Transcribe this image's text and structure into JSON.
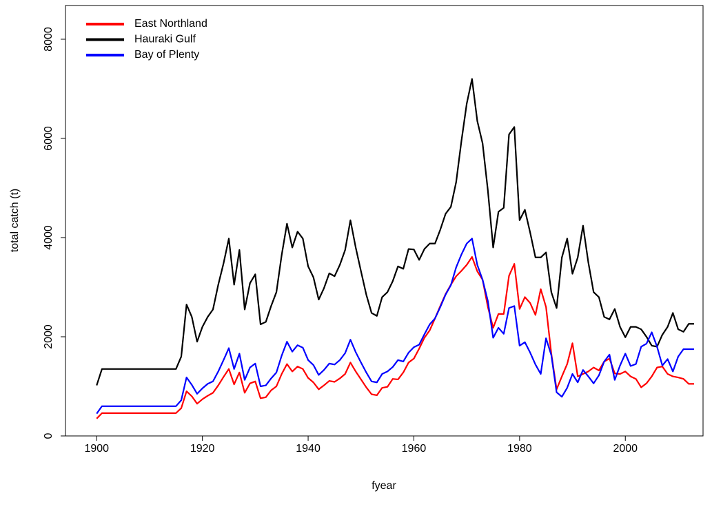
{
  "chart_data": {
    "type": "line",
    "x_label": "fyear",
    "y_label": "total catch (t)",
    "x": [
      1900,
      1901,
      1902,
      1903,
      1904,
      1905,
      1906,
      1907,
      1908,
      1909,
      1910,
      1911,
      1912,
      1913,
      1914,
      1915,
      1916,
      1917,
      1918,
      1919,
      1920,
      1921,
      1922,
      1923,
      1924,
      1925,
      1926,
      1927,
      1928,
      1929,
      1930,
      1931,
      1932,
      1933,
      1934,
      1935,
      1936,
      1937,
      1938,
      1939,
      1940,
      1941,
      1942,
      1943,
      1944,
      1945,
      1946,
      1947,
      1948,
      1949,
      1950,
      1951,
      1952,
      1953,
      1954,
      1955,
      1956,
      1957,
      1958,
      1959,
      1960,
      1961,
      1962,
      1963,
      1964,
      1965,
      1966,
      1967,
      1968,
      1969,
      1970,
      1971,
      1972,
      1973,
      1974,
      1975,
      1976,
      1977,
      1978,
      1979,
      1980,
      1981,
      1982,
      1983,
      1984,
      1985,
      1986,
      1987,
      1988,
      1989,
      1990,
      1991,
      1992,
      1993,
      1994,
      1995,
      1996,
      1997,
      1998,
      1999,
      2000,
      2001,
      2002,
      2003,
      2004,
      2005,
      2006,
      2007,
      2008,
      2009,
      2010,
      2011,
      2012,
      2013
    ],
    "series": [
      {
        "name": "East Northland",
        "color": "#ff0000",
        "values": [
          350,
          460,
          460,
          460,
          460,
          460,
          460,
          460,
          460,
          460,
          460,
          460,
          460,
          460,
          460,
          460,
          560,
          900,
          800,
          650,
          740,
          810,
          870,
          1020,
          1190,
          1350,
          1040,
          1280,
          870,
          1060,
          1100,
          760,
          780,
          920,
          1000,
          1250,
          1450,
          1300,
          1400,
          1350,
          1170,
          1080,
          940,
          1020,
          1110,
          1090,
          1160,
          1250,
          1480,
          1300,
          1140,
          980,
          840,
          820,
          970,
          990,
          1150,
          1140,
          1280,
          1480,
          1560,
          1760,
          1980,
          2130,
          2370,
          2620,
          2860,
          3050,
          3220,
          3330,
          3450,
          3610,
          3320,
          3150,
          2600,
          2180,
          2460,
          2460,
          3230,
          3470,
          2560,
          2800,
          2680,
          2440,
          2960,
          2600,
          1660,
          940,
          1200,
          1450,
          1870,
          1200,
          1250,
          1300,
          1380,
          1320,
          1500,
          1560,
          1260,
          1250,
          1300,
          1200,
          1150,
          980,
          1060,
          1200,
          1380,
          1400,
          1250,
          1200,
          1180,
          1150,
          1050,
          1050
        ]
      },
      {
        "name": "Hauraki Gulf",
        "color": "#000000",
        "values": [
          1020,
          1350,
          1350,
          1350,
          1350,
          1350,
          1350,
          1350,
          1350,
          1350,
          1350,
          1350,
          1350,
          1350,
          1350,
          1350,
          1600,
          2650,
          2400,
          1900,
          2200,
          2400,
          2550,
          3050,
          3480,
          3980,
          3050,
          3750,
          2550,
          3080,
          3260,
          2250,
          2300,
          2620,
          2900,
          3650,
          4280,
          3800,
          4120,
          3980,
          3420,
          3200,
          2750,
          2980,
          3280,
          3220,
          3450,
          3750,
          4350,
          3800,
          3320,
          2850,
          2480,
          2420,
          2800,
          2900,
          3120,
          3420,
          3370,
          3770,
          3760,
          3550,
          3770,
          3880,
          3880,
          4160,
          4480,
          4620,
          5120,
          5950,
          6700,
          7200,
          6350,
          5900,
          4950,
          3800,
          4520,
          4600,
          6080,
          6230,
          4350,
          4560,
          4100,
          3600,
          3600,
          3700,
          2900,
          2580,
          3600,
          3980,
          3270,
          3600,
          4240,
          3500,
          2900,
          2800,
          2400,
          2350,
          2560,
          2200,
          1990,
          2200,
          2200,
          2150,
          2000,
          1820,
          1800,
          2040,
          2200,
          2480,
          2150,
          2100,
          2260,
          2260
        ]
      },
      {
        "name": "Bay of Plenty",
        "color": "#0000ff",
        "values": [
          450,
          600,
          600,
          600,
          600,
          600,
          600,
          600,
          600,
          600,
          600,
          600,
          600,
          600,
          600,
          600,
          720,
          1180,
          1030,
          850,
          960,
          1050,
          1100,
          1300,
          1530,
          1770,
          1350,
          1660,
          1130,
          1380,
          1460,
          1000,
          1020,
          1160,
          1280,
          1620,
          1900,
          1700,
          1830,
          1780,
          1530,
          1430,
          1230,
          1330,
          1460,
          1440,
          1530,
          1670,
          1940,
          1690,
          1480,
          1280,
          1100,
          1080,
          1250,
          1300,
          1390,
          1530,
          1500,
          1680,
          1790,
          1840,
          2050,
          2250,
          2370,
          2600,
          2850,
          3040,
          3400,
          3660,
          3880,
          3980,
          3450,
          3150,
          2720,
          1980,
          2180,
          2060,
          2580,
          2620,
          1820,
          1890,
          1680,
          1440,
          1250,
          1970,
          1630,
          880,
          790,
          970,
          1250,
          1080,
          1330,
          1200,
          1060,
          1220,
          1500,
          1640,
          1130,
          1420,
          1660,
          1410,
          1450,
          1800,
          1860,
          2090,
          1800,
          1420,
          1550,
          1300,
          1600,
          1750,
          1750,
          1750
        ]
      }
    ],
    "xlim": [
      1894.1,
      2014.7
    ],
    "xticks": [
      1900,
      1920,
      1940,
      1960,
      1980,
      2000
    ],
    "ylim": [
      0,
      8680
    ],
    "yticks": [
      0,
      2000,
      4000,
      6000,
      8000
    ],
    "legend": "top-left",
    "grid": false
  }
}
